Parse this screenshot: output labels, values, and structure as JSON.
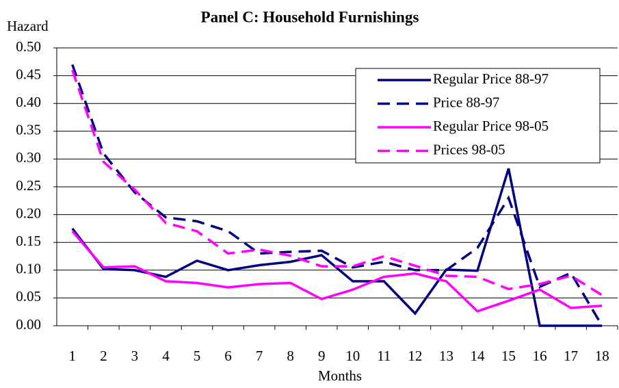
{
  "chart_data": {
    "type": "line",
    "title": "Panel C: Household Furnishings",
    "y_label": "Hazard",
    "x_label": "Months",
    "categories": [
      "1",
      "2",
      "3",
      "4",
      "5",
      "6",
      "7",
      "8",
      "9",
      "10",
      "11",
      "12",
      "13",
      "14",
      "15",
      "16",
      "17",
      "18"
    ],
    "series": [
      {
        "name": "Regular Price 88-97",
        "color": "#000080",
        "dash": "solid",
        "values": [
          0.175,
          0.102,
          0.1,
          0.088,
          0.117,
          0.1,
          0.109,
          0.115,
          0.127,
          0.08,
          0.08,
          0.022,
          0.101,
          0.099,
          0.283,
          0,
          0,
          0
        ]
      },
      {
        "name": "Price 88-97",
        "color": "#000080",
        "dash": "dashed",
        "values": [
          0.47,
          0.31,
          0.24,
          0.195,
          0.188,
          0.17,
          0.13,
          0.133,
          0.135,
          0.105,
          0.115,
          0.1,
          0.1,
          0.14,
          0.23,
          0.07,
          0.095,
          0.0
        ]
      },
      {
        "name": "Regular Price 98-05",
        "color": "#ff00ff",
        "dash": "solid",
        "values": [
          0.17,
          0.105,
          0.107,
          0.08,
          0.077,
          0.069,
          0.075,
          0.077,
          0.048,
          0.065,
          0.088,
          0.094,
          0.08,
          0.026,
          0.045,
          0.065,
          0.032,
          0.036
        ]
      },
      {
        "name": "Prices 98-05",
        "color": "#ff00ff",
        "dash": "dashed",
        "values": [
          0.46,
          0.295,
          0.245,
          0.185,
          0.17,
          0.13,
          0.137,
          0.126,
          0.107,
          0.107,
          0.125,
          0.108,
          0.09,
          0.088,
          0.066,
          0.075,
          0.09,
          0.055
        ]
      }
    ],
    "ylim": [
      0,
      0.5
    ],
    "yticks": [
      {
        "value": 0,
        "label": "0.00"
      },
      {
        "value": 0.05,
        "label": "0.05"
      },
      {
        "value": 0.1,
        "label": "0.10"
      },
      {
        "value": 0.15,
        "label": "0.15"
      },
      {
        "value": 0.2,
        "label": "0.20"
      },
      {
        "value": 0.25,
        "label": "0.25"
      },
      {
        "value": 0.3,
        "label": "0.30"
      },
      {
        "value": 0.35,
        "label": "0.35"
      },
      {
        "value": 0.4,
        "label": "0.40"
      },
      {
        "value": 0.45,
        "label": "0.45"
      },
      {
        "value": 0.5,
        "label": "0.50"
      }
    ],
    "grid": true,
    "legend": "upper-right"
  }
}
